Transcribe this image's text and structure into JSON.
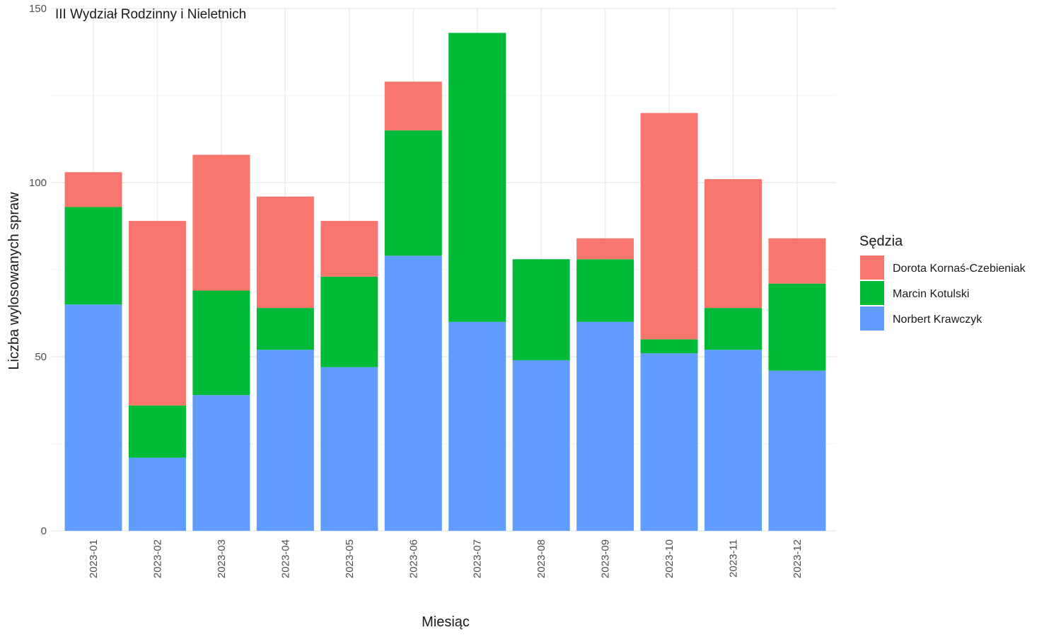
{
  "chart_data": {
    "type": "bar",
    "stacked": true,
    "title": "III Wydział Rodzinny i Nieletnich",
    "xlabel": "Miesiąc",
    "ylabel": "Liczba wylosowanych spraw",
    "ylim": [
      0,
      150
    ],
    "yticks": [
      "0",
      "50",
      "100",
      "150"
    ],
    "grid": true,
    "legend_title": "Sędzia",
    "legend_position": "right",
    "categories": [
      "2023-01",
      "2023-02",
      "2023-03",
      "2023-04",
      "2023-05",
      "2023-06",
      "2023-07",
      "2023-08",
      "2023-09",
      "2023-10",
      "2023-11",
      "2023-12"
    ],
    "series": [
      {
        "name": "Norbert Krawczyk",
        "color": "#619CFF",
        "values": [
          65,
          21,
          39,
          52,
          47,
          79,
          60,
          49,
          60,
          51,
          52,
          46
        ]
      },
      {
        "name": "Marcin Kotulski",
        "color": "#00BA38",
        "values": [
          28,
          15,
          30,
          12,
          26,
          36,
          83,
          29,
          18,
          4,
          12,
          25
        ]
      },
      {
        "name": "Dorota Kornaś-Czebieniak",
        "color": "#F8766D",
        "values": [
          10,
          53,
          39,
          32,
          16,
          14,
          0,
          0,
          6,
          65,
          37,
          13
        ]
      }
    ],
    "legend_order": [
      "Dorota Kornaś-Czebieniak",
      "Marcin Kotulski",
      "Norbert Krawczyk"
    ]
  }
}
